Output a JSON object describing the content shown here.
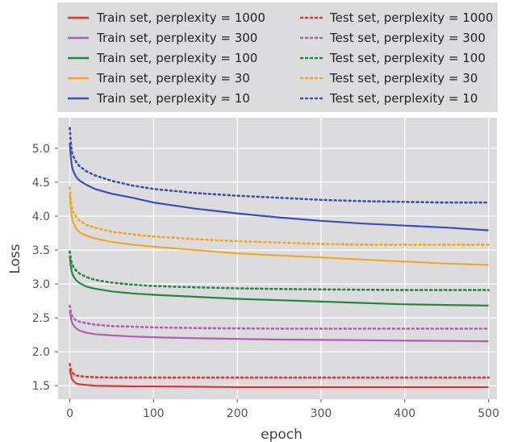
{
  "chart_data": {
    "type": "line",
    "title": "",
    "xlabel": "epoch",
    "ylabel": "Loss",
    "xlim": [
      -14,
      510
    ],
    "ylim": [
      1.3,
      5.45
    ],
    "xticks": [
      0,
      100,
      200,
      300,
      400,
      500
    ],
    "yticks": [
      1.5,
      2.0,
      2.5,
      3.0,
      3.5,
      4.0,
      4.5,
      5.0
    ],
    "x": [
      0,
      1,
      2,
      3,
      5,
      8,
      12,
      20,
      30,
      50,
      75,
      100,
      150,
      200,
      250,
      300,
      350,
      400,
      450,
      500
    ],
    "grid": true,
    "legend_position": "top",
    "series": [
      {
        "name": "Train set, perplexity = 1000",
        "split": "train",
        "color": "#e8312a",
        "values": [
          1.75,
          1.67,
          1.62,
          1.59,
          1.56,
          1.53,
          1.52,
          1.51,
          1.5,
          1.495,
          1.49,
          1.49,
          1.485,
          1.48,
          1.48,
          1.48,
          1.48,
          1.48,
          1.48,
          1.48
        ]
      },
      {
        "name": "Test set, perplexity = 1000",
        "split": "test",
        "color": "#e8312a",
        "values": [
          1.82,
          1.75,
          1.71,
          1.69,
          1.67,
          1.65,
          1.64,
          1.63,
          1.625,
          1.62,
          1.62,
          1.62,
          1.62,
          1.62,
          1.62,
          1.62,
          1.62,
          1.62,
          1.62,
          1.62
        ]
      },
      {
        "name": "Train set, perplexity = 300",
        "split": "train",
        "color": "#b55bb4",
        "values": [
          2.62,
          2.52,
          2.46,
          2.42,
          2.38,
          2.34,
          2.31,
          2.28,
          2.26,
          2.24,
          2.225,
          2.215,
          2.2,
          2.19,
          2.18,
          2.175,
          2.17,
          2.165,
          2.16,
          2.155
        ]
      },
      {
        "name": "Test set, perplexity = 300",
        "split": "test",
        "color": "#b55bb4",
        "values": [
          2.68,
          2.6,
          2.55,
          2.52,
          2.49,
          2.46,
          2.44,
          2.42,
          2.4,
          2.38,
          2.37,
          2.36,
          2.35,
          2.345,
          2.34,
          2.34,
          2.34,
          2.34,
          2.34,
          2.34
        ]
      },
      {
        "name": "Train set, perplexity = 100",
        "split": "train",
        "color": "#1f8a3c",
        "values": [
          3.42,
          3.28,
          3.2,
          3.15,
          3.1,
          3.05,
          3.01,
          2.96,
          2.93,
          2.89,
          2.86,
          2.84,
          2.81,
          2.78,
          2.76,
          2.74,
          2.72,
          2.7,
          2.69,
          2.68
        ]
      },
      {
        "name": "Test set, perplexity = 100",
        "split": "test",
        "color": "#1f8a3c",
        "values": [
          3.48,
          3.38,
          3.32,
          3.28,
          3.24,
          3.19,
          3.15,
          3.1,
          3.06,
          3.02,
          2.99,
          2.97,
          2.95,
          2.935,
          2.925,
          2.92,
          2.915,
          2.91,
          2.91,
          2.91
        ]
      },
      {
        "name": "Train set, perplexity = 30",
        "split": "train",
        "color": "#f5a623",
        "values": [
          4.32,
          4.12,
          4.02,
          3.95,
          3.88,
          3.81,
          3.76,
          3.71,
          3.67,
          3.62,
          3.58,
          3.55,
          3.5,
          3.45,
          3.42,
          3.39,
          3.36,
          3.33,
          3.3,
          3.28
        ]
      },
      {
        "name": "Test set, perplexity = 30",
        "split": "test",
        "color": "#f5a623",
        "values": [
          4.42,
          4.25,
          4.16,
          4.1,
          4.04,
          3.98,
          3.93,
          3.87,
          3.83,
          3.77,
          3.73,
          3.7,
          3.66,
          3.63,
          3.61,
          3.59,
          3.58,
          3.58,
          3.58,
          3.58
        ]
      },
      {
        "name": "Train set, perplexity = 10",
        "split": "train",
        "color": "#3a4fb5",
        "values": [
          5.08,
          4.88,
          4.78,
          4.71,
          4.64,
          4.57,
          4.52,
          4.46,
          4.4,
          4.33,
          4.27,
          4.2,
          4.11,
          4.04,
          3.98,
          3.93,
          3.89,
          3.86,
          3.83,
          3.79
        ]
      },
      {
        "name": "Test set, perplexity = 10",
        "split": "test",
        "color": "#3a4fb5",
        "values": [
          5.3,
          5.1,
          4.98,
          4.92,
          4.86,
          4.79,
          4.73,
          4.66,
          4.6,
          4.52,
          4.45,
          4.4,
          4.34,
          4.3,
          4.27,
          4.24,
          4.22,
          4.21,
          4.2,
          4.2
        ]
      }
    ]
  }
}
